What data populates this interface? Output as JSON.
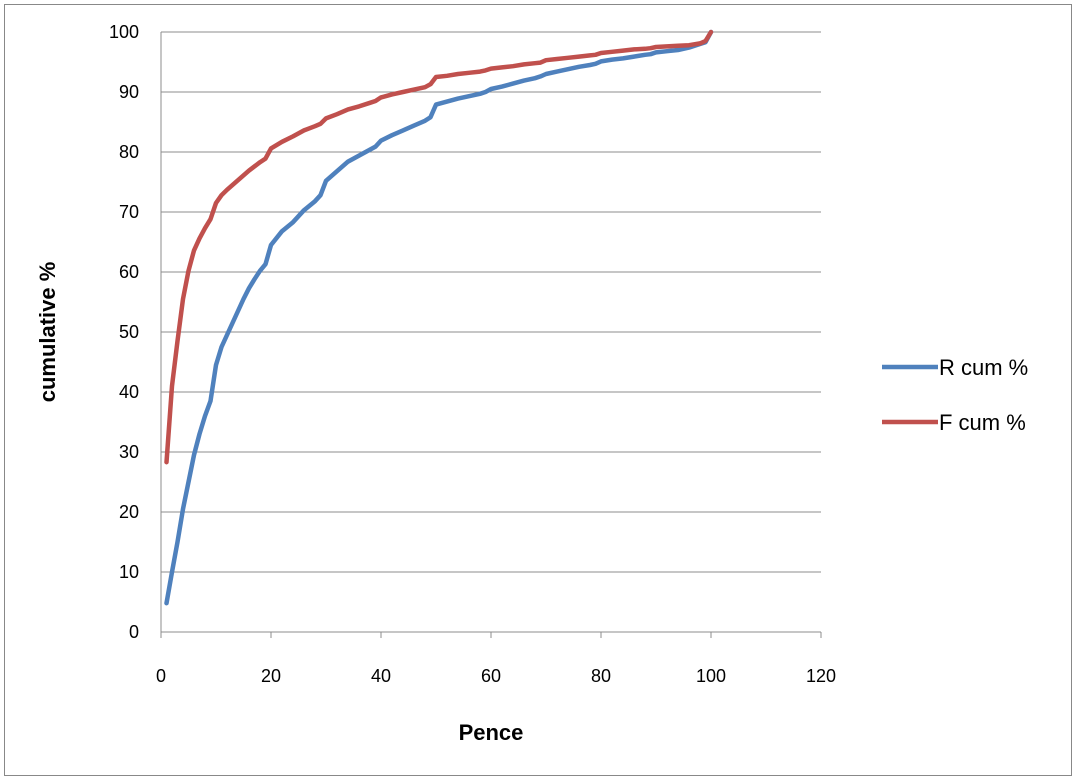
{
  "chart_data": {
    "type": "line",
    "title": "",
    "xlabel": "Pence",
    "ylabel": "cumulative %",
    "xlim": [
      0,
      120
    ],
    "ylim": [
      0,
      100
    ],
    "x_ticks": [
      "0",
      "20",
      "40",
      "60",
      "80",
      "100",
      "120"
    ],
    "y_ticks": [
      "0",
      "10",
      "20",
      "30",
      "40",
      "50",
      "60",
      "70",
      "80",
      "90",
      "100"
    ],
    "grid": "horizontal",
    "legend_position": "right",
    "series": [
      {
        "name": "R cum %",
        "color": "#4f81bd",
        "x": [
          1,
          2,
          3,
          4,
          5,
          6,
          7,
          8,
          9,
          10,
          11,
          12,
          13,
          14,
          15,
          16,
          17,
          18,
          19,
          20,
          22,
          24,
          26,
          28,
          29,
          30,
          32,
          34,
          36,
          38,
          39,
          40,
          42,
          44,
          46,
          48,
          49,
          50,
          52,
          54,
          56,
          58,
          59,
          60,
          62,
          64,
          66,
          68,
          69,
          70,
          72,
          74,
          76,
          78,
          79,
          80,
          82,
          84,
          86,
          88,
          89,
          90,
          92,
          94,
          96,
          98,
          99,
          100
        ],
        "y": [
          4.8,
          10,
          15,
          20.5,
          25,
          29.5,
          33,
          36,
          38.5,
          44.5,
          47.5,
          49.5,
          51.5,
          53.5,
          55.5,
          57.3,
          58.8,
          60.2,
          61.3,
          64.5,
          66.8,
          68.3,
          70.3,
          71.8,
          72.8,
          75.2,
          76.8,
          78.4,
          79.4,
          80.4,
          80.9,
          81.9,
          82.8,
          83.6,
          84.4,
          85.2,
          85.8,
          87.9,
          88.4,
          88.9,
          89.3,
          89.7,
          90.0,
          90.5,
          90.9,
          91.4,
          91.9,
          92.3,
          92.6,
          93.0,
          93.4,
          93.8,
          94.2,
          94.5,
          94.7,
          95.1,
          95.4,
          95.6,
          95.9,
          96.2,
          96.3,
          96.6,
          96.8,
          97.0,
          97.4,
          98.0,
          98.3,
          100
        ]
      },
      {
        "name": "F cum %",
        "color": "#c0504d",
        "x": [
          1,
          2,
          3,
          4,
          5,
          6,
          7,
          8,
          9,
          10,
          11,
          12,
          14,
          16,
          18,
          19,
          20,
          22,
          24,
          26,
          28,
          29,
          30,
          32,
          34,
          36,
          38,
          39,
          40,
          42,
          44,
          46,
          48,
          49,
          50,
          52,
          54,
          56,
          58,
          59,
          60,
          62,
          64,
          66,
          68,
          69,
          70,
          72,
          74,
          76,
          78,
          79,
          80,
          82,
          84,
          86,
          88,
          89,
          90,
          92,
          94,
          96,
          98,
          99,
          100
        ],
        "y": [
          28.3,
          41,
          48.5,
          55.5,
          60.2,
          63.6,
          65.6,
          67.3,
          68.8,
          71.5,
          72.8,
          73.7,
          75.3,
          76.9,
          78.3,
          78.9,
          80.6,
          81.7,
          82.6,
          83.6,
          84.3,
          84.7,
          85.6,
          86.3,
          87.1,
          87.6,
          88.2,
          88.5,
          89.1,
          89.6,
          90.0,
          90.4,
          90.8,
          91.3,
          92.5,
          92.7,
          93.0,
          93.2,
          93.4,
          93.6,
          93.9,
          94.1,
          94.3,
          94.6,
          94.8,
          94.9,
          95.3,
          95.5,
          95.7,
          95.9,
          96.1,
          96.2,
          96.5,
          96.7,
          96.9,
          97.1,
          97.2,
          97.3,
          97.5,
          97.6,
          97.7,
          97.8,
          98.1,
          98.5,
          100
        ]
      }
    ]
  }
}
